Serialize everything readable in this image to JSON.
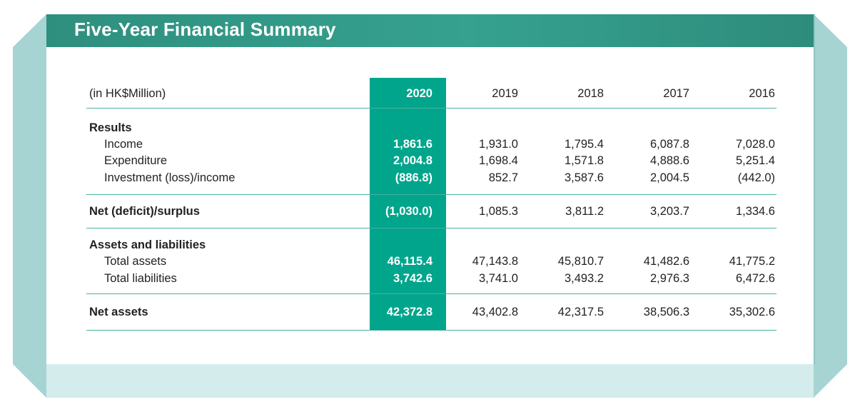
{
  "title": "Five-Year Financial Summary",
  "table": {
    "unit_label": "(in HK$Million)",
    "years": [
      "2020",
      "2019",
      "2018",
      "2017",
      "2016"
    ],
    "results": {
      "heading": "Results",
      "rows": [
        {
          "label": "Income",
          "values": [
            "1,861.6",
            "1,931.0",
            "1,795.4",
            "6,087.8",
            "7,028.0"
          ]
        },
        {
          "label": "Expenditure",
          "values": [
            "2,004.8",
            "1,698.4",
            "1,571.8",
            "4,888.6",
            "5,251.4"
          ]
        },
        {
          "label": "Investment (loss)/income",
          "values": [
            "(886.8)",
            "852.7",
            "3,587.6",
            "2,004.5",
            "(442.0)"
          ]
        }
      ]
    },
    "net_surplus": {
      "label": "Net (deficit)/surplus",
      "values": [
        "(1,030.0)",
        "1,085.3",
        "3,811.2",
        "3,203.7",
        "1,334.6"
      ]
    },
    "assets": {
      "heading": "Assets and liabilities",
      "rows": [
        {
          "label": "Total assets",
          "values": [
            "46,115.4",
            "47,143.8",
            "45,810.7",
            "41,482.6",
            "41,775.2"
          ]
        },
        {
          "label": "Total liabilities",
          "values": [
            "3,742.6",
            "3,741.0",
            "3,493.2",
            "2,976.3",
            "6,472.6"
          ]
        }
      ]
    },
    "net_assets": {
      "label": "Net assets",
      "values": [
        "42,372.8",
        "43,402.8",
        "42,317.5",
        "38,506.3",
        "35,302.6"
      ]
    }
  },
  "colors": {
    "header_bar": "#36a18f",
    "highlight_column": "#00a58c",
    "rule": "#48b39f",
    "frame": "#a6d4d3",
    "bottom_band": "#d4ecec"
  }
}
